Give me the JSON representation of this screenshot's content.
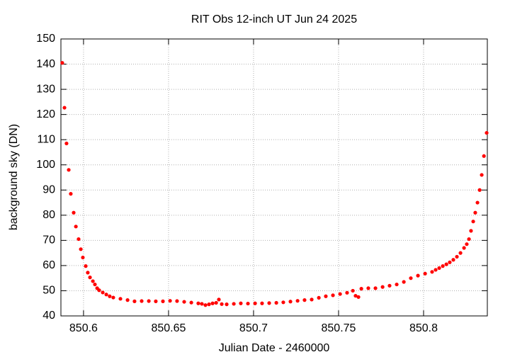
{
  "chart_data": {
    "type": "scatter",
    "title": "RIT Obs 12-inch UT Jun 24 2025",
    "xlabel": "Julian Date - 2460000",
    "ylabel": "background sky (DN)",
    "color": "#ff0000",
    "grid": true,
    "xlim": [
      850.5867,
      850.8375
    ],
    "xticks": [
      850.6,
      850.65,
      850.7,
      850.75,
      850.8
    ],
    "ylim": [
      40,
      150
    ],
    "yticks": [
      40,
      50,
      60,
      70,
      80,
      90,
      100,
      110,
      120,
      130,
      140,
      150
    ],
    "x": [
      850.5875,
      850.5888,
      850.59,
      850.5913,
      850.5925,
      850.5942,
      850.5955,
      850.5971,
      850.5984,
      850.5996,
      850.6013,
      850.6025,
      850.6038,
      850.6055,
      850.6067,
      850.608,
      850.6092,
      850.6113,
      850.6134,
      850.6154,
      850.6175,
      850.6217,
      850.6259,
      850.63,
      850.6342,
      850.6384,
      850.6425,
      850.6467,
      850.6509,
      850.655,
      850.6592,
      850.6634,
      850.6675,
      850.6696,
      850.6717,
      850.6738,
      850.6759,
      850.678,
      850.6796,
      850.6813,
      850.6842,
      850.6884,
      850.6925,
      850.6967,
      850.7009,
      850.705,
      850.7092,
      850.7134,
      850.7175,
      850.7217,
      850.7259,
      850.73,
      850.7342,
      850.7384,
      850.7425,
      850.7467,
      850.7509,
      850.755,
      850.7584,
      850.76,
      850.7617,
      850.7634,
      850.7675,
      850.7717,
      850.7759,
      850.78,
      850.7842,
      850.7884,
      850.7925,
      850.7967,
      850.8009,
      850.805,
      850.8071,
      850.8092,
      850.8113,
      850.8134,
      850.8154,
      850.8175,
      850.8196,
      850.8217,
      850.8238,
      850.8254,
      850.8267,
      850.8279,
      850.8292,
      850.8304,
      850.8317,
      850.833,
      850.8342,
      850.8355,
      850.8371
    ],
    "values": [
      140.5,
      122.7,
      108.5,
      98,
      88.5,
      81,
      75.5,
      70.5,
      66.5,
      63.2,
      59.8,
      57.2,
      55.3,
      53.8,
      52.5,
      51,
      50.2,
      49.3,
      48.5,
      47.8,
      47.3,
      46.8,
      46.3,
      45.8,
      45.9,
      45.9,
      45.8,
      45.8,
      46,
      45.9,
      45.6,
      45.3,
      45,
      44.8,
      44.3,
      44.6,
      45,
      45.2,
      46.5,
      44.7,
      44.6,
      44.8,
      45,
      44.9,
      45,
      45,
      45.1,
      45.2,
      45.4,
      45.7,
      46,
      46.3,
      46.5,
      47.2,
      47.8,
      48.2,
      48.7,
      49.2,
      50,
      48,
      47.5,
      50.8,
      51,
      51,
      51.5,
      52,
      52.5,
      53.5,
      55,
      56,
      56.8,
      57.5,
      58.3,
      59,
      59.8,
      60.5,
      61.3,
      62.3,
      63.5,
      65,
      67,
      68.5,
      70.5,
      73.8,
      77.5,
      81,
      85,
      90,
      96,
      103.5,
      112.7
    ]
  }
}
